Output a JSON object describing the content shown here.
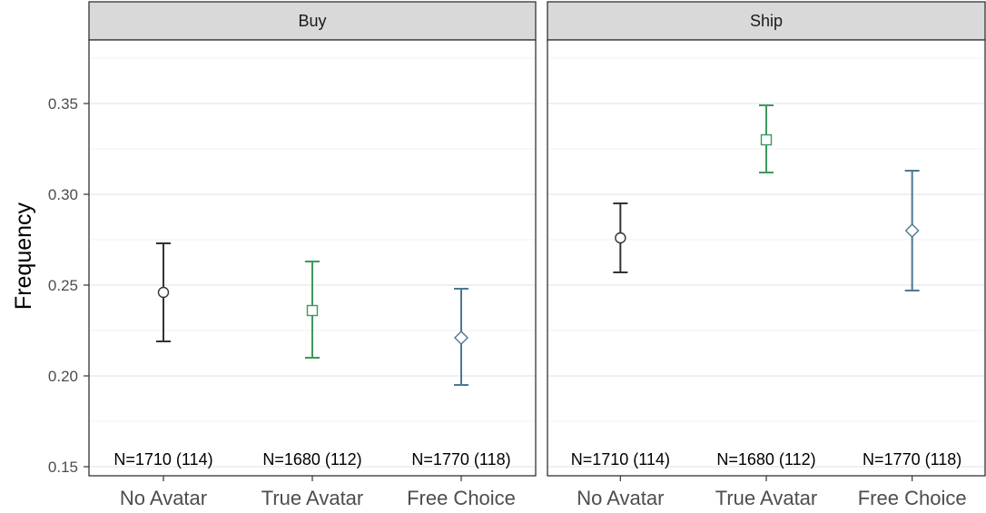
{
  "chart_data": {
    "type": "errorbar",
    "ylabel": "Frequency",
    "ylim": [
      0.145,
      0.385
    ],
    "yticks": [
      "0.15",
      "0.20",
      "0.25",
      "0.30",
      "0.35"
    ],
    "ytick_values": [
      0.15,
      0.2,
      0.25,
      0.3,
      0.35
    ],
    "categories": [
      "No Avatar",
      "True Avatar",
      "Free Choice"
    ],
    "colors": [
      "#333333",
      "#3a9a5c",
      "#4f7793"
    ],
    "markers": [
      "circle",
      "square",
      "diamond"
    ],
    "grid": true,
    "panels": [
      {
        "title": "Buy",
        "points": [
          {
            "category": "No Avatar",
            "y": 0.246,
            "ymin": 0.219,
            "ymax": 0.273,
            "n_label": "N=1710 (114)"
          },
          {
            "category": "True Avatar",
            "y": 0.236,
            "ymin": 0.21,
            "ymax": 0.263,
            "n_label": "N=1680 (112)"
          },
          {
            "category": "Free Choice",
            "y": 0.221,
            "ymin": 0.195,
            "ymax": 0.248,
            "n_label": "N=1770 (118)"
          }
        ]
      },
      {
        "title": "Ship",
        "points": [
          {
            "category": "No Avatar",
            "y": 0.276,
            "ymin": 0.257,
            "ymax": 0.295,
            "n_label": "N=1710 (114)"
          },
          {
            "category": "True Avatar",
            "y": 0.33,
            "ymin": 0.312,
            "ymax": 0.349,
            "n_label": "N=1680 (112)"
          },
          {
            "category": "Free Choice",
            "y": 0.28,
            "ymin": 0.247,
            "ymax": 0.313,
            "n_label": "N=1770 (118)"
          }
        ]
      }
    ]
  }
}
